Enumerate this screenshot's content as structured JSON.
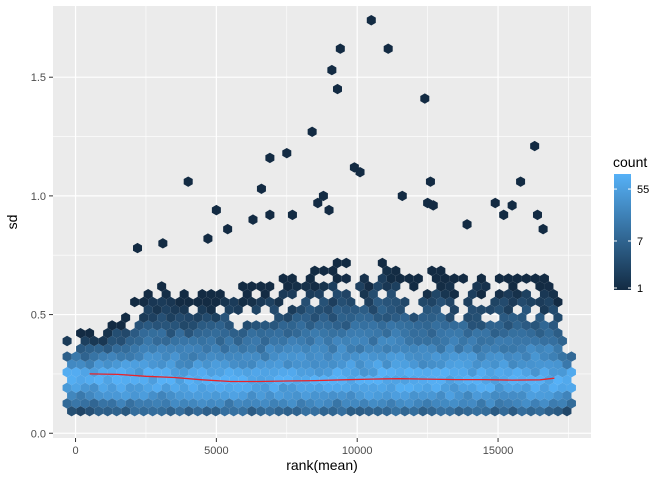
{
  "chart_data": {
    "type": "hexbin",
    "title": "",
    "xlabel": "rank(mean)",
    "ylabel": "sd",
    "xlim": [
      -800,
      18300
    ],
    "ylim": [
      -0.02,
      1.8
    ],
    "x_ticks": [
      0,
      5000,
      10000,
      15000
    ],
    "x_tick_labels": [
      "0",
      "5000",
      "10000",
      "15000"
    ],
    "y_ticks": [
      0.0,
      0.5,
      1.0,
      1.5
    ],
    "y_tick_labels": [
      "0.0",
      "0.5",
      "1.0",
      "1.5"
    ],
    "grid": true,
    "legend": {
      "title": "count",
      "placement": "right",
      "scale": "log",
      "breaks": [
        1,
        7,
        55
      ],
      "break_labels": [
        "1",
        "7",
        "55"
      ],
      "color_low": "#132b43",
      "color_high": "#56b1f7",
      "max_count": 100
    },
    "colors": {
      "panel_background": "#ebebeb",
      "grid_major": "#ffffff",
      "trend_line": "#e8232a"
    },
    "density_profile": {
      "x": [
        0,
        1000,
        2000,
        3000,
        4000,
        5000,
        6000,
        7000,
        8000,
        9000,
        10000,
        11000,
        12000,
        13000,
        14000,
        15000,
        16000,
        17000,
        17500
      ],
      "median_sd": [
        0.25,
        0.25,
        0.24,
        0.235,
        0.225,
        0.22,
        0.22,
        0.22,
        0.225,
        0.225,
        0.225,
        0.23,
        0.225,
        0.225,
        0.225,
        0.225,
        0.22,
        0.23,
        0.24
      ],
      "low_sd": [
        0.1,
        0.08,
        0.07,
        0.07,
        0.07,
        0.07,
        0.07,
        0.07,
        0.07,
        0.07,
        0.07,
        0.07,
        0.07,
        0.07,
        0.07,
        0.07,
        0.07,
        0.07,
        0.1
      ],
      "upper_sd": [
        0.42,
        0.44,
        0.56,
        0.62,
        0.6,
        0.62,
        0.62,
        0.65,
        0.68,
        0.72,
        0.72,
        0.75,
        0.68,
        0.7,
        0.68,
        0.68,
        0.68,
        0.65,
        0.4
      ]
    },
    "outlier_points": [
      {
        "x": 10500,
        "y": 1.74
      },
      {
        "x": 9400,
        "y": 1.62
      },
      {
        "x": 11100,
        "y": 1.62
      },
      {
        "x": 9100,
        "y": 1.53
      },
      {
        "x": 9300,
        "y": 1.45
      },
      {
        "x": 12400,
        "y": 1.41
      },
      {
        "x": 8400,
        "y": 1.27
      },
      {
        "x": 16300,
        "y": 1.21
      },
      {
        "x": 7500,
        "y": 1.18
      },
      {
        "x": 6900,
        "y": 1.16
      },
      {
        "x": 9900,
        "y": 1.12
      },
      {
        "x": 10100,
        "y": 1.1
      },
      {
        "x": 4000,
        "y": 1.06
      },
      {
        "x": 12600,
        "y": 1.06
      },
      {
        "x": 15800,
        "y": 1.06
      },
      {
        "x": 6600,
        "y": 1.03
      },
      {
        "x": 8800,
        "y": 1.0
      },
      {
        "x": 11600,
        "y": 1.0
      },
      {
        "x": 8600,
        "y": 0.97
      },
      {
        "x": 12500,
        "y": 0.97
      },
      {
        "x": 12700,
        "y": 0.96
      },
      {
        "x": 14900,
        "y": 0.97
      },
      {
        "x": 15500,
        "y": 0.96
      },
      {
        "x": 5000,
        "y": 0.94
      },
      {
        "x": 6900,
        "y": 0.92
      },
      {
        "x": 7700,
        "y": 0.92
      },
      {
        "x": 9000,
        "y": 0.94
      },
      {
        "x": 15200,
        "y": 0.92
      },
      {
        "x": 16400,
        "y": 0.92
      },
      {
        "x": 6300,
        "y": 0.9
      },
      {
        "x": 3100,
        "y": 0.8
      },
      {
        "x": 5400,
        "y": 0.86
      },
      {
        "x": 13900,
        "y": 0.88
      },
      {
        "x": 16600,
        "y": 0.86
      },
      {
        "x": 2200,
        "y": 0.78
      },
      {
        "x": 4700,
        "y": 0.82
      }
    ],
    "trend_line": {
      "x": [
        500,
        1500,
        2500,
        3500,
        4500,
        5500,
        6500,
        7500,
        8500,
        9500,
        10500,
        11500,
        12500,
        13500,
        14500,
        15500,
        16500,
        17000
      ],
      "y": [
        0.25,
        0.248,
        0.24,
        0.235,
        0.225,
        0.218,
        0.218,
        0.22,
        0.222,
        0.225,
        0.228,
        0.23,
        0.228,
        0.226,
        0.226,
        0.224,
        0.225,
        0.232
      ]
    }
  }
}
